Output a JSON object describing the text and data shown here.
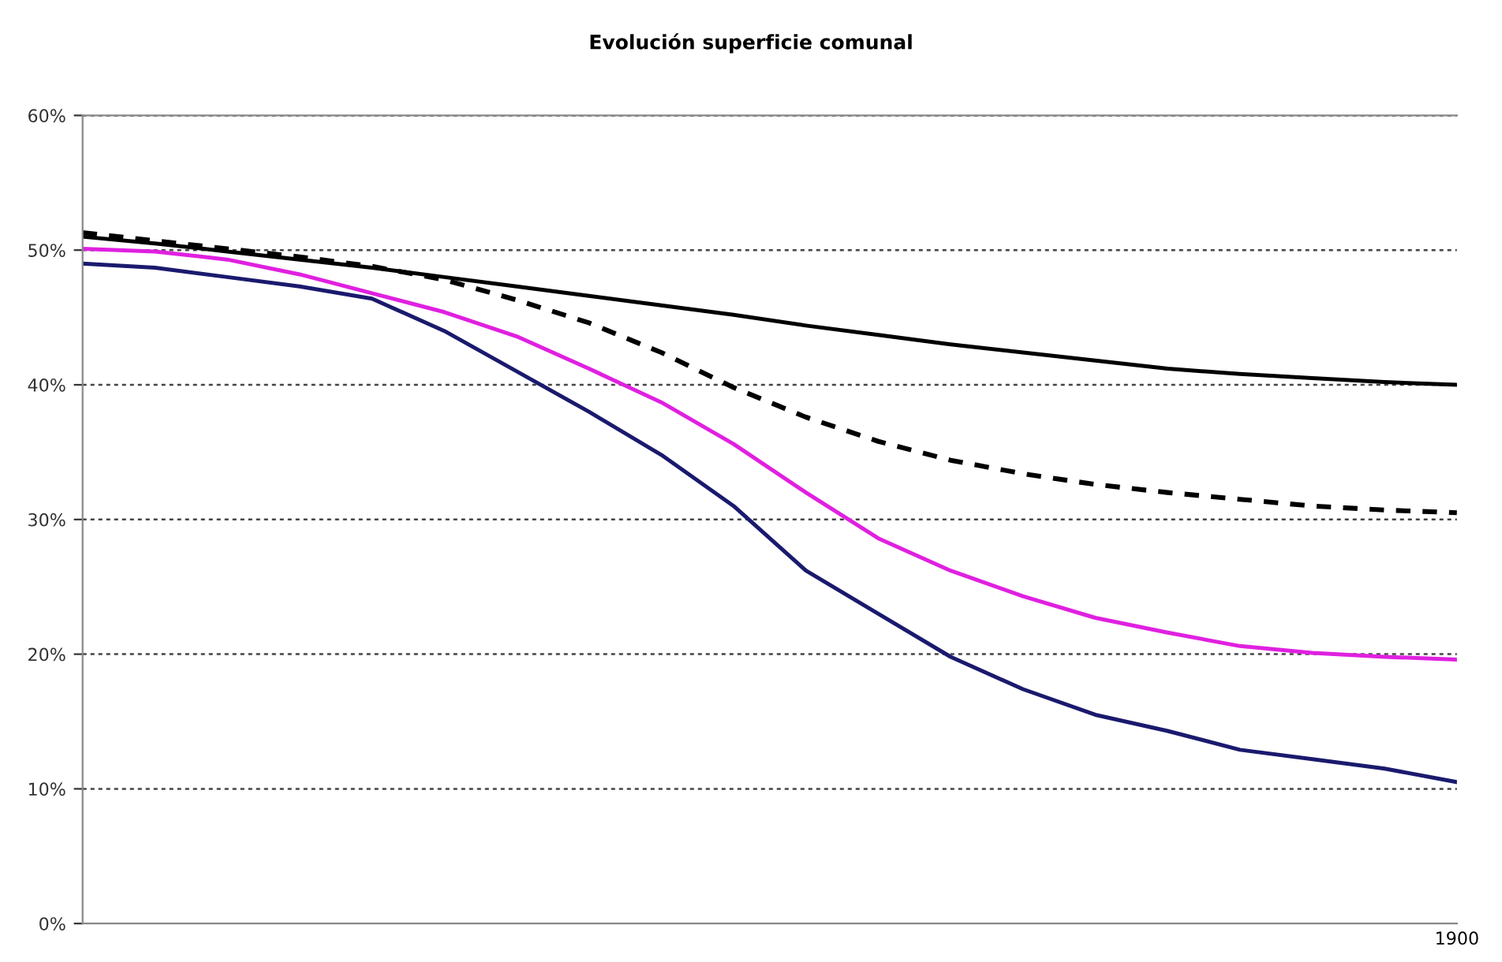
{
  "chart_data": {
    "type": "line",
    "title": "Evolución superficie comunal",
    "categories": [
      null,
      null,
      null,
      null,
      null,
      null,
      null,
      null,
      null,
      null,
      null,
      null,
      null,
      null,
      null,
      null,
      null,
      null,
      null,
      "1900"
    ],
    "series": [
      {
        "color": "#000000",
        "line_style": "solid",
        "values": [
          51.0,
          50.5,
          49.9,
          49.3,
          48.7,
          48.0,
          47.3,
          46.6,
          45.9,
          45.2,
          44.4,
          43.7,
          43.0,
          42.4,
          41.8,
          41.2,
          40.8,
          40.5,
          40.2,
          40.0
        ]
      },
      {
        "color": "#000000",
        "line_style": "dashed",
        "values": [
          51.3,
          50.7,
          50.1,
          49.5,
          48.8,
          47.8,
          46.3,
          44.6,
          42.4,
          39.8,
          37.6,
          35.8,
          34.4,
          33.4,
          32.6,
          32.0,
          31.5,
          31.0,
          30.7,
          30.5
        ]
      },
      {
        "color": "#e020e0",
        "line_style": "solid",
        "values": [
          50.1,
          49.9,
          49.3,
          48.2,
          46.8,
          45.4,
          43.6,
          41.2,
          38.7,
          35.6,
          32.0,
          28.6,
          26.2,
          24.3,
          22.7,
          21.6,
          20.6,
          20.1,
          19.8,
          19.6
        ]
      },
      {
        "color": "#1a1a6e",
        "line_style": "solid",
        "values": [
          49.0,
          48.7,
          48.0,
          47.3,
          46.4,
          44.0,
          41.0,
          38.0,
          34.8,
          31.0,
          26.2,
          23.0,
          19.8,
          17.4,
          15.5,
          14.3,
          12.9,
          12.2,
          11.5,
          10.5
        ]
      }
    ],
    "ylim": [
      0,
      60
    ],
    "yticks": [
      {
        "value": 0,
        "label": "0%"
      },
      {
        "value": 10,
        "label": "10%"
      },
      {
        "value": 20,
        "label": "20%"
      },
      {
        "value": 30,
        "label": "30%"
      },
      {
        "value": 40,
        "label": "40%"
      },
      {
        "value": 50,
        "label": "50%"
      },
      {
        "value": 60,
        "label": "60%"
      }
    ],
    "grid": "y",
    "legend": false,
    "marker": "none"
  }
}
